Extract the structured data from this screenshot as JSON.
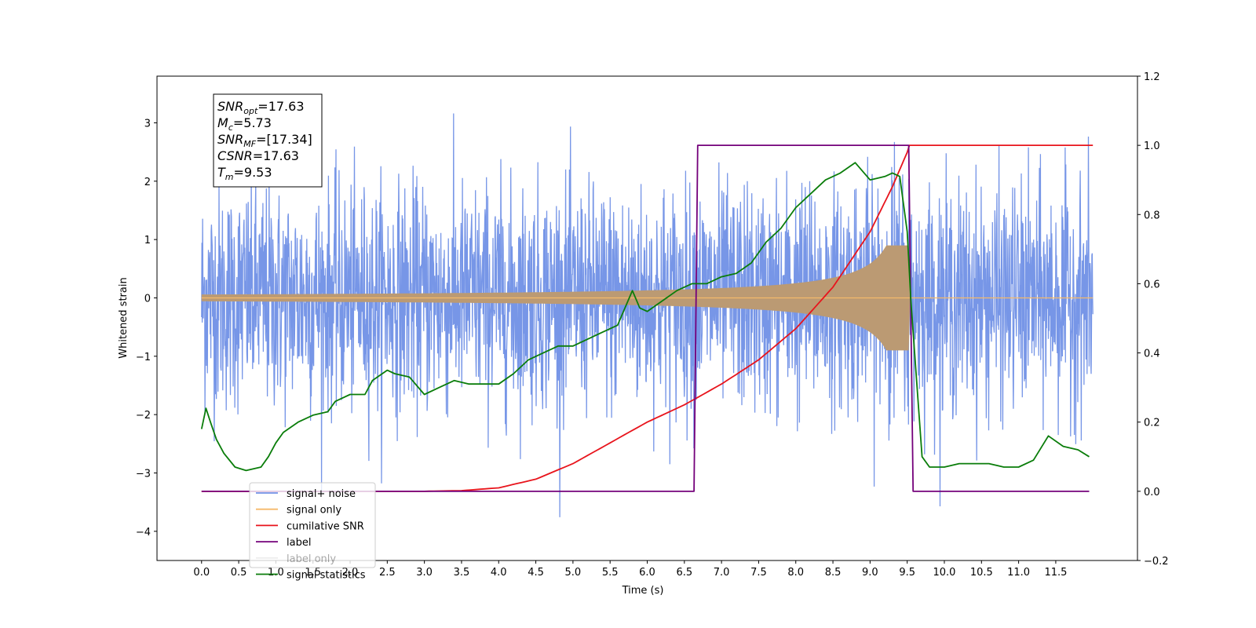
{
  "chart_data": {
    "type": "line",
    "xlabel": "Time (s)",
    "ylabel": "Whitened strain",
    "xlim": [
      -0.6,
      12.6
    ],
    "ylim": [
      -4.5,
      3.8
    ],
    "ylim_right": [
      -0.2,
      1.2
    ],
    "x_ticks": [
      "0.0",
      "0.5",
      "1.0",
      "1.5",
      "2.0",
      "2.5",
      "3.0",
      "3.5",
      "4.0",
      "4.5",
      "5.0",
      "5.5",
      "6.0",
      "6.5",
      "7.0",
      "7.5",
      "8.0",
      "8.5",
      "9.0",
      "9.5",
      "10.0",
      "10.5",
      "11.0",
      "11.5"
    ],
    "y_ticks": [
      "3",
      "2",
      "1",
      "0",
      "−1",
      "−2",
      "−3",
      "−4"
    ],
    "y_right_ticks": [
      "1.2",
      "1.0",
      "0.8",
      "0.6",
      "0.4",
      "0.2",
      "0.0",
      "−0.2"
    ],
    "annotation": [
      {
        "name": "SNR",
        "sub": "opt",
        "value": "=17.63"
      },
      {
        "name": "M",
        "sub": "c",
        "value": "=5.73"
      },
      {
        "name": "SNR",
        "sub": "MF",
        "value": "=[17.34]"
      },
      {
        "name": "CSNR",
        "sub": "",
        "value": "=17.63"
      },
      {
        "name": "T",
        "sub": "m",
        "value": "=9.53"
      }
    ],
    "legend_position": "lower-left",
    "series": [
      {
        "name": "signal+ noise",
        "color": "#7090e6",
        "axis": "left",
        "kind": "noise",
        "x_range": [
          0.0,
          12.0
        ],
        "typical_amplitude": 1.0,
        "peak_min": -4.1,
        "peak_max": 3.5
      },
      {
        "name": "signal only",
        "color": "#f5b96a",
        "axis": "left",
        "kind": "chirp",
        "x_range": [
          0.0,
          12.0
        ],
        "merger_time": 9.53,
        "peak_amplitude": 0.9,
        "amplitude_at_6s": 0.15
      },
      {
        "name": "cumilative SNR",
        "color": "#e8141c",
        "axis": "right",
        "x": [
          0.0,
          3.0,
          3.5,
          4.0,
          4.5,
          5.0,
          5.5,
          6.0,
          6.5,
          7.0,
          7.5,
          8.0,
          8.5,
          9.0,
          9.3,
          9.5,
          9.53,
          12.0
        ],
        "y": [
          0.0,
          0.0,
          0.002,
          0.01,
          0.035,
          0.08,
          0.14,
          0.2,
          0.25,
          0.31,
          0.38,
          0.47,
          0.59,
          0.75,
          0.88,
          0.98,
          1.0,
          1.0
        ]
      },
      {
        "name": "label",
        "color": "#74007a",
        "axis": "right",
        "x": [
          0.0,
          6.63,
          6.68,
          9.52,
          9.58,
          11.95
        ],
        "y": [
          0.0,
          0.0,
          1.0,
          1.0,
          0.0,
          0.0
        ]
      },
      {
        "name": "label only",
        "color": "#cccccc",
        "axis": "right",
        "x": [],
        "y": []
      },
      {
        "name": "signal statistics",
        "color": "#0a7d0a",
        "axis": "right",
        "x": [
          0.0,
          0.06,
          0.12,
          0.2,
          0.3,
          0.45,
          0.6,
          0.8,
          0.9,
          1.0,
          1.1,
          1.3,
          1.5,
          1.7,
          1.8,
          2.0,
          2.2,
          2.3,
          2.5,
          2.6,
          2.8,
          3.0,
          3.2,
          3.4,
          3.6,
          3.8,
          4.0,
          4.2,
          4.4,
          4.6,
          4.8,
          5.0,
          5.2,
          5.4,
          5.6,
          5.8,
          5.9,
          6.0,
          6.2,
          6.4,
          6.6,
          6.8,
          7.0,
          7.2,
          7.4,
          7.6,
          7.8,
          8.0,
          8.2,
          8.4,
          8.6,
          8.8,
          9.0,
          9.2,
          9.3,
          9.4,
          9.5,
          9.55,
          9.7,
          9.8,
          10.0,
          10.2,
          10.4,
          10.6,
          10.8,
          11.0,
          11.2,
          11.4,
          11.6,
          11.8,
          11.95
        ],
        "y": [
          0.18,
          0.24,
          0.2,
          0.15,
          0.11,
          0.07,
          0.06,
          0.07,
          0.1,
          0.14,
          0.17,
          0.2,
          0.22,
          0.23,
          0.26,
          0.28,
          0.28,
          0.32,
          0.35,
          0.34,
          0.33,
          0.28,
          0.3,
          0.32,
          0.31,
          0.31,
          0.31,
          0.34,
          0.38,
          0.4,
          0.42,
          0.42,
          0.44,
          0.46,
          0.48,
          0.58,
          0.53,
          0.52,
          0.55,
          0.58,
          0.6,
          0.6,
          0.62,
          0.63,
          0.66,
          0.72,
          0.76,
          0.82,
          0.86,
          0.9,
          0.92,
          0.95,
          0.9,
          0.91,
          0.92,
          0.91,
          0.75,
          0.55,
          0.1,
          0.07,
          0.07,
          0.08,
          0.08,
          0.08,
          0.07,
          0.07,
          0.09,
          0.16,
          0.13,
          0.12,
          0.1
        ]
      }
    ]
  }
}
